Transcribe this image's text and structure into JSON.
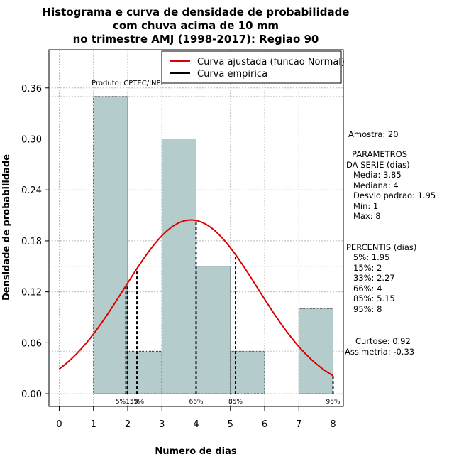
{
  "chart_data": {
    "type": "bar",
    "title_lines": [
      "Histograma e curva de densidade de probabilidade",
      "com chuva acima de 10 mm",
      "no trimestre AMJ (1998-2017): Regiao 90"
    ],
    "xlabel": "Numero de dias",
    "ylabel": "Densidade de probabilidade",
    "xlim": [
      -0.3,
      8.3
    ],
    "ylim": [
      -0.015,
      0.405
    ],
    "xticks": [
      "0",
      "1",
      "2",
      "3",
      "4",
      "5",
      "6",
      "7",
      "8"
    ],
    "yticks": [
      "0.00",
      "0.06",
      "0.12",
      "0.18",
      "0.24",
      "0.30",
      "0.36"
    ],
    "bars": [
      {
        "x0": 1,
        "x1": 2,
        "value": 0.35
      },
      {
        "x0": 2,
        "x1": 3,
        "value": 0.05
      },
      {
        "x0": 3,
        "x1": 4,
        "value": 0.3
      },
      {
        "x0": 4,
        "x1": 5,
        "value": 0.15
      },
      {
        "x0": 5,
        "x1": 6,
        "value": 0.05
      },
      {
        "x0": 6,
        "x1": 7,
        "value": 0.0
      },
      {
        "x0": 7,
        "x1": 8,
        "value": 0.1
      }
    ],
    "normal_curve": {
      "mean": 3.85,
      "sd": 1.95,
      "x_from": 0,
      "x_to": 8
    },
    "percentiles": [
      {
        "label": "5%",
        "x": 1.95
      },
      {
        "label": "15%",
        "x": 2
      },
      {
        "label": "33%",
        "x": 2.27
      },
      {
        "label": "66%",
        "x": 4
      },
      {
        "label": "85%",
        "x": 5.15
      },
      {
        "label": "95%",
        "x": 8
      }
    ],
    "percentile_labels_below": {
      "x1": 2.0,
      "text1": "5%15%",
      "x2": 2.27,
      "text2": "33%"
    },
    "legend": {
      "position": "top-right",
      "items": [
        {
          "label": "Curva ajustada (funcao Normal)",
          "color": "#dd0000"
        },
        {
          "label": "Curva empirica",
          "color": "#000000"
        }
      ]
    },
    "credit": "Produto: CPTEC/INPE",
    "bar_color": "#b5cccc",
    "curve_color": "#dd0000"
  },
  "stats": {
    "sample": "Amostra: 20",
    "params_title": [
      "PARAMETROS",
      "DA SERIE (dias)"
    ],
    "params": [
      "Media: 3.85",
      "Mediana: 4",
      "Desvio padrao: 1.95",
      "Min: 1",
      "Max: 8"
    ],
    "percentis_title": "PERCENTIS (dias)",
    "percentis": [
      "5%: 1.95",
      "15%: 2",
      "33%: 2.27",
      "66%: 4",
      "85%: 5.15",
      "95%: 8"
    ],
    "curtose": "Curtose: 0.92",
    "assimetria": "Assimetria: -0.33"
  }
}
